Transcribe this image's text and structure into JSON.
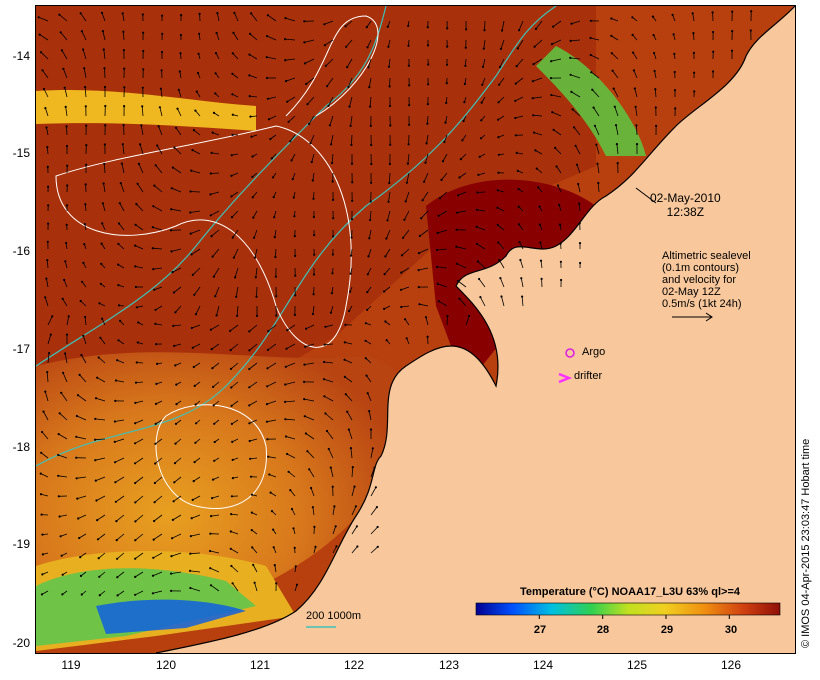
{
  "map": {
    "y_ticks": [
      "-14",
      "-15",
      "-16",
      "-17",
      "-18",
      "-19",
      "-20"
    ],
    "x_ticks": [
      "119",
      "120",
      "121",
      "122",
      "123",
      "124",
      "125",
      "126"
    ],
    "lon_range": [
      118.65,
      126.7
    ],
    "lat_range": [
      -20.1,
      -13.6
    ]
  },
  "timestamp": {
    "line1": "02-May-2010",
    "line2": "12:38Z"
  },
  "altimetry_note": {
    "line1": "Altimetric sealevel",
    "line2": "(0.1m contours)",
    "line3": "and velocity for",
    "line4": "02-May 12Z",
    "line5": "0.5m/s (1kt 24h)"
  },
  "markers": {
    "argo_label": "Argo",
    "drifter_label": "drifter",
    "argo_color": "#e020e0",
    "drifter_color": "#ff30ff"
  },
  "isobath_label": "200  1000m",
  "isobath_color": "#40c0b8",
  "legend": {
    "title": "Temperature (°C) NOAA17_L3U 63% ql>=4",
    "ticks": [
      "27",
      "28",
      "29",
      "30"
    ],
    "range": [
      26.0,
      30.8
    ]
  },
  "credit": "© IMOS 04-Apr-2015 23:03:47 Hobart time",
  "colors": {
    "land": "#f8c89c",
    "warm": "#a81e08",
    "mid": "#d46a10",
    "cool": "#f0b030"
  }
}
